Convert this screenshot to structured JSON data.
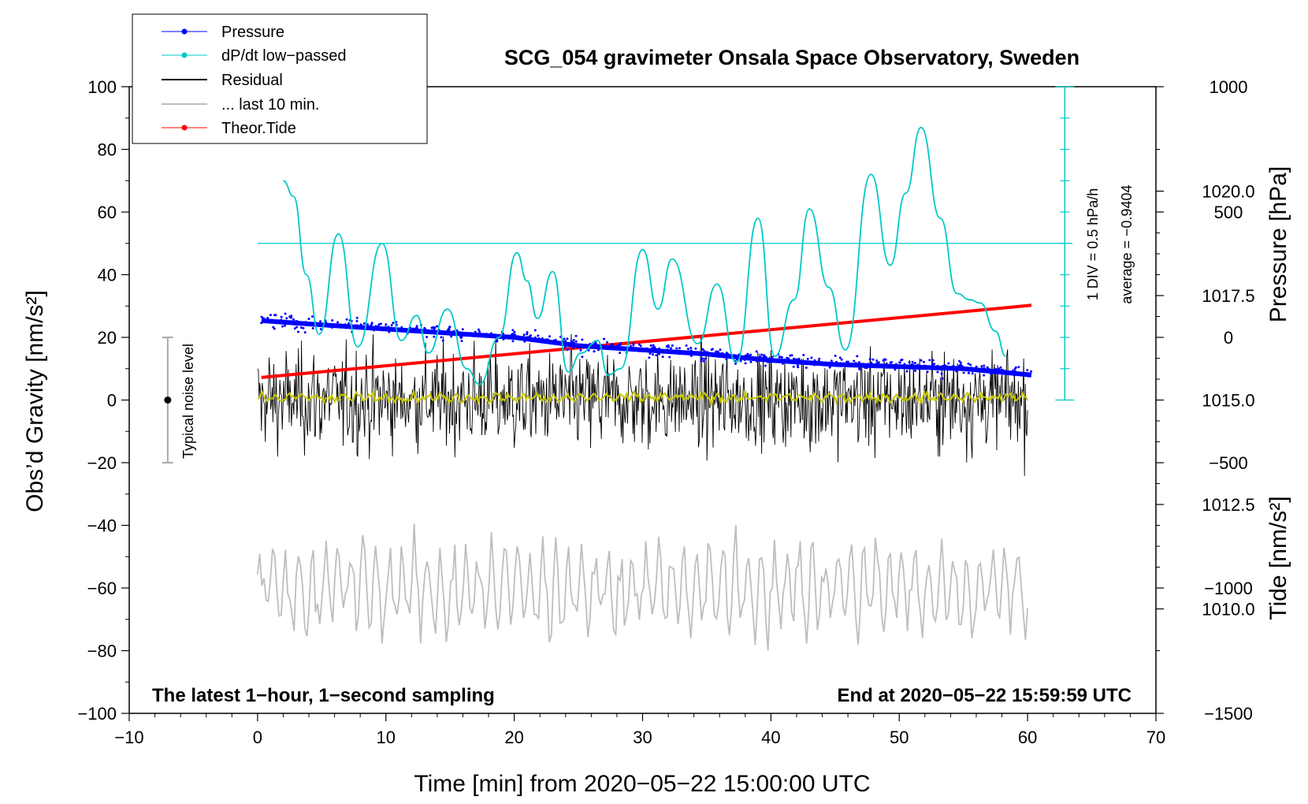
{
  "chart_data": {
    "type": "line",
    "title": "SCG_054 gravimeter Onsala Space Observatory, Sweden",
    "xlabel": "Time [min] from 2020−05−22 15:00:00 UTC",
    "ylabel_left": "Obs’d Gravity [nm/s²]",
    "ylabel_right_pressure": "Pressure [hPa]",
    "ylabel_right_tide": "Tide [nm/s²]",
    "xlim": [
      -10,
      70
    ],
    "ylim": [
      -100,
      100
    ],
    "pressure_ylim_hpa": [
      1007.5,
      1022.5
    ],
    "tide_ylim": [
      -1500,
      1000
    ],
    "x_ticks": [
      -10,
      0,
      10,
      20,
      30,
      40,
      50,
      60,
      70
    ],
    "x_tick_labels": [
      "−10",
      "0",
      "10",
      "20",
      "30",
      "40",
      "50",
      "60",
      "70"
    ],
    "y_ticks": [
      100,
      80,
      60,
      40,
      20,
      0,
      -20,
      -40,
      -60,
      -80,
      -100
    ],
    "y_tick_labels": [
      "100",
      "80",
      "60",
      "40",
      "20",
      "0",
      "−20",
      "−40",
      "−60",
      "−80",
      "−100"
    ],
    "pressure_ticks": [
      1020.0,
      1017.5,
      1015.0,
      1012.5,
      1010.0
    ],
    "pressure_tick_labels": [
      "1020.0",
      "1017.5",
      "1015.0",
      "1012.5",
      "1010.0"
    ],
    "tide_ticks": [
      1000,
      500,
      0,
      -500,
      -1000,
      -1500
    ],
    "tide_tick_labels": [
      "1000",
      "500",
      "0",
      "−500",
      "−1000",
      "−1500"
    ],
    "legend": [
      {
        "label": "Pressure",
        "color": "#0000ff",
        "style": "line-dot"
      },
      {
        "label": "dP/dt low−passed",
        "color": "#00c8c8",
        "style": "line-dot"
      },
      {
        "label": "Residual",
        "color": "#000000",
        "style": "line"
      },
      {
        "label": "... last 10 min.",
        "color": "#bebebe",
        "style": "line"
      },
      {
        "label": "Theor.Tide",
        "color": "#ff0000",
        "style": "line-dot"
      }
    ],
    "annotations": {
      "left_note": "The latest 1−hour, 1−second sampling",
      "right_note": "End at 2020−05−22 15:59:59 UTC",
      "noise_label": "Typical noise level",
      "div_label": "1 DIV = 0.5 hPa/h",
      "average_label": "average = −0.9404"
    },
    "noise_bar": {
      "x": -7,
      "y_center": 0,
      "y_low": -20,
      "y_high": 20
    },
    "series": [
      {
        "name": "Pressure",
        "unit": "hPa",
        "color": "#0000ff",
        "x": [
          0.3,
          5,
          10,
          15,
          20,
          25,
          30,
          35,
          40,
          45,
          50,
          55,
          60.3
        ],
        "values": [
          1016.9,
          1016.8,
          1016.7,
          1016.6,
          1016.5,
          1016.3,
          1016.2,
          1016.1,
          1015.95,
          1015.85,
          1015.8,
          1015.75,
          1015.6
        ]
      },
      {
        "name": "dP/dt low−passed",
        "unit": "gravity-axis units",
        "color": "#00c8c8",
        "zero_level": 50,
        "x": [
          2.0,
          2.8,
          3.8,
          4.8,
          6.3,
          7.8,
          9.7,
          11.2,
          12.4,
          13.3,
          14.8,
          16.3,
          17.3,
          18.8,
          20.2,
          21.0,
          21.8,
          23.0,
          24.2,
          25.2,
          26.5,
          27.3,
          28.3,
          30.0,
          31.2,
          32.3,
          34.3,
          35.8,
          37.3,
          39.0,
          40.3,
          41.8,
          43.0,
          44.5,
          45.8,
          47.8,
          49.3,
          50.5,
          51.7,
          53.2,
          54.5,
          55.5,
          56.3,
          57.5,
          58.3
        ],
        "values": [
          70,
          65,
          40,
          21,
          53,
          17,
          50,
          19,
          27,
          15,
          29,
          10,
          5,
          20,
          47,
          38,
          26,
          41,
          9,
          15,
          19,
          8,
          10,
          48,
          29,
          45,
          18,
          37,
          12,
          58,
          14,
          32,
          61,
          36,
          16,
          72,
          43,
          66,
          87,
          58,
          34,
          32,
          31,
          22,
          14
        ]
      },
      {
        "name": "Residual",
        "unit": "nm/s²",
        "color": "#000000",
        "x_range": [
          0,
          60
        ],
        "value_range": [
          -27,
          26
        ],
        "samples_per_second": 1
      },
      {
        "name": "Residual (smoothed)",
        "unit": "nm/s²",
        "color": "#c8c800",
        "x_range": [
          0,
          60
        ],
        "value_range": [
          -2,
          3
        ]
      },
      {
        "name": "... last 10 min.",
        "unit": "nm/s²",
        "color": "#bebebe",
        "offset": -60,
        "x_range": [
          0,
          60
        ],
        "value_range": [
          -88,
          -35
        ]
      },
      {
        "name": "Theor.Tide",
        "unit": "nm/s²",
        "color": "#ff0000",
        "x": [
          0.3,
          60.3
        ],
        "values": [
          -160,
          128
        ]
      }
    ]
  }
}
